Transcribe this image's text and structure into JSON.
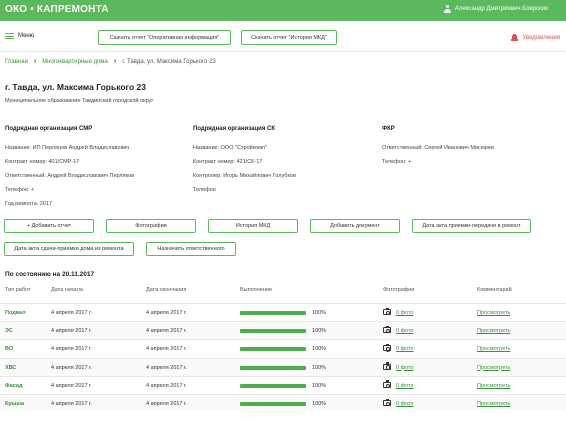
{
  "header": {
    "brand": "ОКО • КАПРЕМОНТА",
    "user_name": "Александр Дмитриевич Боярских"
  },
  "toolbar": {
    "menu_label": "Меню",
    "report_operative": "Скачать отчет \"Оперативная информация\"",
    "report_history": "Скачать отчет \"История МКД\"",
    "notifications": "Уведомления"
  },
  "breadcrumb": {
    "home": "Главная",
    "houses": "Многоквартирные дома",
    "current": "г. Тавда, ул. Максима Горького 23"
  },
  "page": {
    "title": "г. Тавда, ул. Максима Горького 23",
    "municipality": "Муниципальное образование Тавдинский городской округ"
  },
  "smr": {
    "header": "Подрядная организация СМР",
    "name": "Название: ИП Перлянов Андрей Владиславович",
    "contract": "Контракт номер: 401/СМР-17",
    "responsible": "Ответственный: Андрей Владиславович Перляков",
    "phone": "Телефон: +",
    "year": "Год ремонта: 2017"
  },
  "sk": {
    "header": "Подрядная организация СК",
    "name": "Название: ООО \"Стройкомп\"",
    "contract": "Контракт номер: 421/СК-17",
    "controller": "Контролер: Игорь Михайлович Голубков",
    "phone": "Телефон"
  },
  "fkr": {
    "header": "ФКР",
    "responsible": "Ответственный: Сергей Иванович Мисюрев",
    "phone": "Телефон: +"
  },
  "actions": {
    "add_report": "+ Добавить отчет",
    "photos": "Фотографии",
    "history": "История МКД",
    "add_document": "Добавить документ",
    "handover_date": "Дата акта приемки-передачи в ремонт",
    "acceptance_date": "Дата акта сдачи-приемки дома из ремонта",
    "assign_responsible": "Назначить ответственного"
  },
  "state_label": "По состоянию на 20.11.2017",
  "table": {
    "columns": [
      "Тип работ",
      "Дата начала",
      "Дата окончания",
      "Выполнение",
      "Фотографии",
      "Комментарий"
    ],
    "rows": [
      {
        "type": "Подвал",
        "start": "4 апреля 2017 г.",
        "end": "4 апреля 2017 г.",
        "progress": 100,
        "progress_label": "100%",
        "photos": "0 фото",
        "comment": "Просмотреть"
      },
      {
        "type": "ЭС",
        "start": "4 апреля 2017 г.",
        "end": "4 апреля 2017 г.",
        "progress": 100,
        "progress_label": "100%",
        "photos": "0 фото",
        "comment": "Просмотреть"
      },
      {
        "type": "ВО",
        "start": "4 апреля 2017 г.",
        "end": "4 апреля 2017 г.",
        "progress": 100,
        "progress_label": "100%",
        "photos": "0 фото",
        "comment": "Просмотреть"
      },
      {
        "type": "ХВС",
        "start": "4 апреля 2017 г.",
        "end": "4 апреля 2017 г.",
        "progress": 100,
        "progress_label": "100%",
        "photos": "0 фото",
        "comment": "Просмотреть"
      },
      {
        "type": "Фасад",
        "start": "4 апреля 2017 г.",
        "end": "4 апреля 2017 г.",
        "progress": 100,
        "progress_label": "100%",
        "photos": "0 фото",
        "comment": "Просмотреть"
      },
      {
        "type": "Крыша",
        "start": "4 апреля 2017 г.",
        "end": "4 апреля 2017 г.",
        "progress": 100,
        "progress_label": "100%",
        "photos": "0 фото",
        "comment": "Просмотреть"
      }
    ]
  },
  "colors": {
    "brand_green": "#5cb85c",
    "link_green": "#3c8f3c",
    "alert_red": "#d9534f"
  }
}
